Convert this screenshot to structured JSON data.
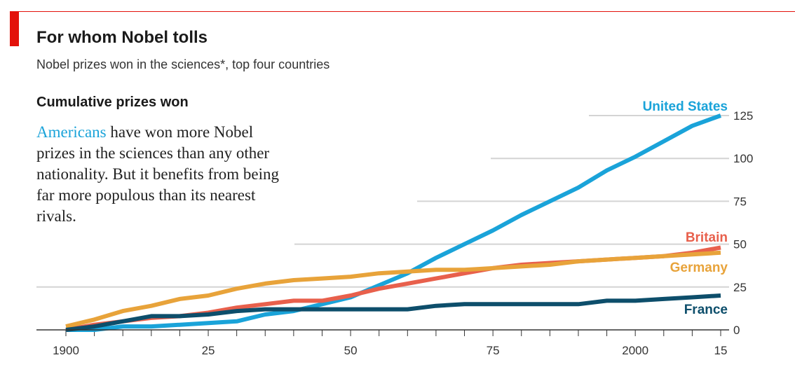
{
  "header": {
    "title": "For whom Nobel tolls",
    "subtitle": "Nobel prizes won in the sciences*, top four countries"
  },
  "annotation": {
    "highlight": "Americans",
    "text": " have won more Nobel prizes in the sciences than any other nationality. But it benefits from being far more populous than its nearest rivals."
  },
  "chart_data": {
    "type": "line",
    "title": "Cumulative prizes won",
    "xlabel": "",
    "ylabel": "",
    "xlim": [
      1900,
      2015
    ],
    "ylim": [
      0,
      125
    ],
    "x_ticks": [
      {
        "value": 1900,
        "label": "1900"
      },
      {
        "value": 1925,
        "label": "25"
      },
      {
        "value": 1950,
        "label": "50"
      },
      {
        "value": 1975,
        "label": "75"
      },
      {
        "value": 2000,
        "label": "2000"
      },
      {
        "value": 2015,
        "label": "15"
      }
    ],
    "y_ticks": [
      0,
      25,
      50,
      75,
      100,
      125
    ],
    "x": [
      1900,
      1905,
      1910,
      1915,
      1920,
      1925,
      1930,
      1935,
      1940,
      1945,
      1950,
      1955,
      1960,
      1965,
      1970,
      1975,
      1980,
      1985,
      1990,
      1995,
      2000,
      2005,
      2010,
      2015
    ],
    "series": [
      {
        "name": "United States",
        "color": "#1aa3d9",
        "values": [
          0,
          0,
          2,
          2,
          3,
          4,
          5,
          9,
          11,
          15,
          19,
          26,
          33,
          42,
          50,
          58,
          67,
          75,
          83,
          93,
          101,
          110,
          119,
          125
        ]
      },
      {
        "name": "Britain",
        "color": "#e8604c",
        "values": [
          0,
          3,
          5,
          7,
          8,
          10,
          13,
          15,
          17,
          17,
          20,
          24,
          27,
          30,
          33,
          36,
          38,
          39,
          40,
          41,
          42,
          43,
          45,
          48
        ]
      },
      {
        "name": "Germany",
        "color": "#e8a33a",
        "values": [
          2,
          6,
          11,
          14,
          18,
          20,
          24,
          27,
          29,
          30,
          31,
          33,
          34,
          35,
          35,
          36,
          37,
          38,
          40,
          41,
          42,
          43,
          44,
          45
        ]
      },
      {
        "name": "France",
        "color": "#0d4e6b",
        "values": [
          0,
          2,
          5,
          8,
          8,
          9,
          11,
          12,
          12,
          12,
          12,
          12,
          12,
          14,
          15,
          15,
          15,
          15,
          15,
          17,
          17,
          18,
          19,
          20
        ]
      }
    ]
  }
}
